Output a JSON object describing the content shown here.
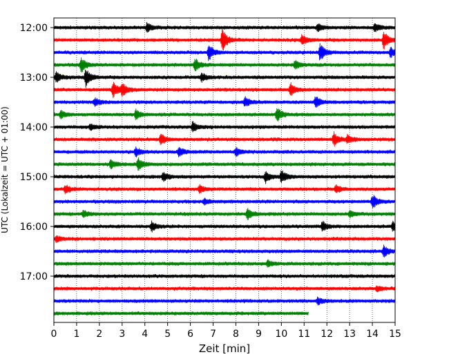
{
  "chart_data": {
    "type": "line",
    "subtype": "helicorder",
    "xlabel": "Zeit  [min]",
    "ylabel": "UTC (Lokalzeit = UTC + 01:00)",
    "xlim": [
      0,
      15
    ],
    "x_ticks": [
      0,
      1,
      2,
      3,
      4,
      5,
      6,
      7,
      8,
      9,
      10,
      11,
      12,
      13,
      14,
      15
    ],
    "x_tick_labels": [
      "0",
      "1",
      "2",
      "3",
      "4",
      "5",
      "6",
      "7",
      "8",
      "9",
      "10",
      "11",
      "12",
      "13",
      "14",
      "15"
    ],
    "y_tick_labels": [
      "12:00",
      "13:00",
      "14:00",
      "15:00",
      "16:00",
      "17:00"
    ],
    "grid": "vertical dotted at each minute",
    "trace_colors": [
      "#000000",
      "#ff0000",
      "#0000ff",
      "#008000"
    ],
    "traces": [
      {
        "start": "12:00",
        "color": "#000000",
        "end_min": 15,
        "events": [
          {
            "t": 4.1,
            "a": 0.9
          },
          {
            "t": 11.6,
            "a": 0.7
          },
          {
            "t": 14.1,
            "a": 0.8
          }
        ]
      },
      {
        "start": "12:15",
        "color": "#ff0000",
        "end_min": 15,
        "events": [
          {
            "t": 7.4,
            "a": 2.2
          },
          {
            "t": 10.9,
            "a": 1.1
          },
          {
            "t": 14.5,
            "a": 1.8
          }
        ]
      },
      {
        "start": "12:30",
        "color": "#0000ff",
        "end_min": 15,
        "events": [
          {
            "t": 6.8,
            "a": 1.6
          },
          {
            "t": 11.7,
            "a": 1.7
          },
          {
            "t": 14.8,
            "a": 1.0
          }
        ]
      },
      {
        "start": "12:45",
        "color": "#008000",
        "end_min": 15,
        "events": [
          {
            "t": 1.2,
            "a": 1.5
          },
          {
            "t": 6.2,
            "a": 1.3
          },
          {
            "t": 10.6,
            "a": 0.8
          }
        ]
      },
      {
        "start": "13:00",
        "color": "#000000",
        "end_min": 15,
        "events": [
          {
            "t": 0.1,
            "a": 1.0
          },
          {
            "t": 1.4,
            "a": 1.9
          },
          {
            "t": 6.5,
            "a": 0.8
          }
        ]
      },
      {
        "start": "13:15",
        "color": "#ff0000",
        "end_min": 15,
        "events": [
          {
            "t": 2.6,
            "a": 1.6
          },
          {
            "t": 3.0,
            "a": 1.2
          },
          {
            "t": 10.4,
            "a": 1.3
          }
        ]
      },
      {
        "start": "13:30",
        "color": "#0000ff",
        "end_min": 15,
        "events": [
          {
            "t": 1.8,
            "a": 0.8
          },
          {
            "t": 8.4,
            "a": 1.0
          },
          {
            "t": 11.5,
            "a": 1.2
          }
        ]
      },
      {
        "start": "13:45",
        "color": "#008000",
        "end_min": 15,
        "events": [
          {
            "t": 0.3,
            "a": 0.8
          },
          {
            "t": 3.6,
            "a": 0.9
          },
          {
            "t": 9.8,
            "a": 1.4
          }
        ]
      },
      {
        "start": "14:00",
        "color": "#000000",
        "end_min": 15,
        "events": [
          {
            "t": 6.1,
            "a": 1.0
          },
          {
            "t": 1.6,
            "a": 0.6
          }
        ]
      },
      {
        "start": "14:15",
        "color": "#ff0000",
        "end_min": 15,
        "events": [
          {
            "t": 4.7,
            "a": 1.1
          },
          {
            "t": 12.3,
            "a": 1.3
          },
          {
            "t": 12.9,
            "a": 0.8
          }
        ]
      },
      {
        "start": "14:30",
        "color": "#0000ff",
        "end_min": 15,
        "events": [
          {
            "t": 3.6,
            "a": 0.9
          },
          {
            "t": 5.5,
            "a": 0.9
          },
          {
            "t": 8.0,
            "a": 0.8
          }
        ]
      },
      {
        "start": "14:45",
        "color": "#008000",
        "end_min": 15,
        "events": [
          {
            "t": 2.5,
            "a": 0.9
          },
          {
            "t": 3.7,
            "a": 1.2
          }
        ]
      },
      {
        "start": "15:00",
        "color": "#000000",
        "end_min": 15,
        "events": [
          {
            "t": 4.8,
            "a": 0.9
          },
          {
            "t": 9.3,
            "a": 1.1
          },
          {
            "t": 10.0,
            "a": 1.3
          }
        ]
      },
      {
        "start": "15:15",
        "color": "#ff0000",
        "end_min": 15,
        "events": [
          {
            "t": 0.5,
            "a": 0.8
          },
          {
            "t": 6.4,
            "a": 0.8
          },
          {
            "t": 12.4,
            "a": 0.8
          }
        ]
      },
      {
        "start": "15:30",
        "color": "#0000ff",
        "end_min": 15,
        "events": [
          {
            "t": 14.0,
            "a": 1.4
          },
          {
            "t": 6.6,
            "a": 0.5
          }
        ]
      },
      {
        "start": "15:45",
        "color": "#008000",
        "end_min": 15,
        "events": [
          {
            "t": 1.3,
            "a": 0.7
          },
          {
            "t": 8.5,
            "a": 1.1
          },
          {
            "t": 13.0,
            "a": 0.7
          }
        ]
      },
      {
        "start": "16:00",
        "color": "#000000",
        "end_min": 15,
        "events": [
          {
            "t": 4.3,
            "a": 0.9
          },
          {
            "t": 11.8,
            "a": 1.0
          },
          {
            "t": 14.9,
            "a": 0.9
          }
        ]
      },
      {
        "start": "16:15",
        "color": "#ff0000",
        "end_min": 15,
        "events": [
          {
            "t": 0.1,
            "a": 0.6
          }
        ]
      },
      {
        "start": "16:30",
        "color": "#0000ff",
        "end_min": 15,
        "events": [
          {
            "t": 14.5,
            "a": 1.1
          }
        ]
      },
      {
        "start": "16:45",
        "color": "#008000",
        "end_min": 15,
        "events": [
          {
            "t": 9.4,
            "a": 0.6
          }
        ]
      },
      {
        "start": "17:00",
        "color": "#000000",
        "end_min": 15,
        "events": []
      },
      {
        "start": "17:15",
        "color": "#ff0000",
        "end_min": 15,
        "events": [
          {
            "t": 14.2,
            "a": 0.5
          }
        ]
      },
      {
        "start": "17:30",
        "color": "#0000ff",
        "end_min": 15,
        "events": [
          {
            "t": 11.6,
            "a": 0.6
          }
        ]
      },
      {
        "start": "17:45",
        "color": "#008000",
        "end_min": 11.2,
        "events": []
      }
    ]
  }
}
